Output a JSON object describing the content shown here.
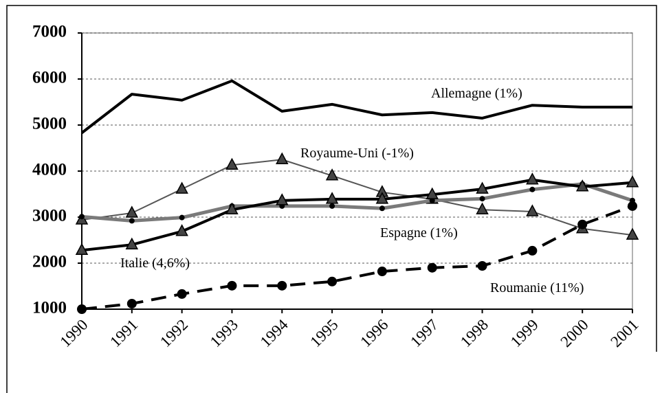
{
  "chart_data": {
    "type": "line",
    "categories": [
      "1990",
      "1991",
      "1992",
      "1993",
      "1994",
      "1995",
      "1996",
      "1997",
      "1998",
      "1999",
      "2000",
      "2001"
    ],
    "ylim": [
      1000,
      7000
    ],
    "yticks": [
      1000,
      2000,
      3000,
      4000,
      5000,
      6000,
      7000
    ],
    "grid": true,
    "series": [
      {
        "name": "Allemagne (1%)",
        "color": "#000000",
        "marker": "none",
        "dashed": false,
        "values": [
          4830,
          5670,
          5540,
          5960,
          5300,
          5450,
          5220,
          5270,
          5150,
          5430,
          5390,
          5390
        ]
      },
      {
        "name": "Royaume-Uni (-1%)",
        "color": "#555555",
        "marker": "triangle",
        "dashed": false,
        "values": [
          2940,
          3090,
          3610,
          4130,
          4250,
          3900,
          3540,
          3390,
          3160,
          3120,
          2750,
          2610
        ]
      },
      {
        "name": "Espagne (1%)",
        "color": "#7a7a7a",
        "marker": "dot",
        "dashed": false,
        "values": [
          3010,
          2920,
          2990,
          3240,
          3240,
          3240,
          3190,
          3360,
          3400,
          3600,
          3720,
          3360
        ]
      },
      {
        "name": "Italie (4,6%)",
        "color": "#000000",
        "marker": "triangle",
        "dashed": false,
        "values": [
          2280,
          2400,
          2690,
          3160,
          3360,
          3390,
          3390,
          3490,
          3610,
          3810,
          3660,
          3750
        ]
      },
      {
        "name": "Roumanie (11%)",
        "color": "#000000",
        "marker": "circle",
        "dashed": true,
        "values": [
          1000,
          1120,
          1330,
          1510,
          1510,
          1600,
          1820,
          1900,
          1940,
          2270,
          2840,
          3240
        ]
      }
    ]
  }
}
